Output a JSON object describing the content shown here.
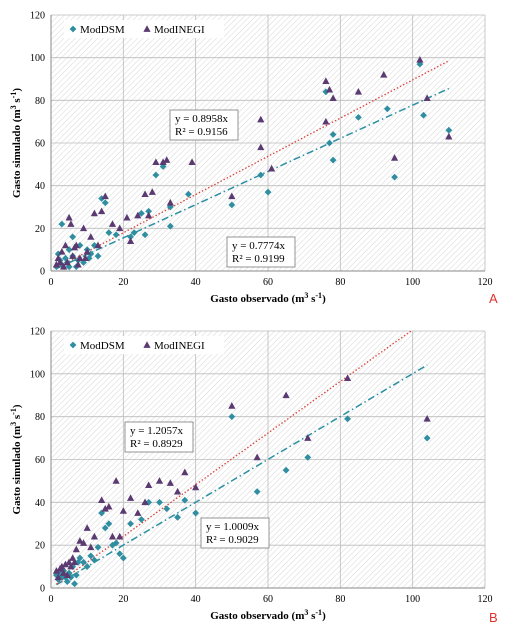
{
  "chart_data": [
    {
      "type": "scatter",
      "panel_label": "A",
      "xlabel_main": "Gasto observado (m",
      "xlabel_sup1": "3",
      "xlabel_mid": " s",
      "xlabel_sup2": "-1",
      "xlabel_end": ")",
      "ylabel_main": "Gasto simulado (m",
      "ylabel_sup1": "3",
      "ylabel_mid": " s",
      "ylabel_sup2": "-1",
      "ylabel_end": ")",
      "xlim": [
        0,
        120
      ],
      "ylim": [
        0,
        120
      ],
      "xticks": [
        "0",
        "20",
        "40",
        "60",
        "80",
        "100",
        "120"
      ],
      "yticks": [
        "0",
        "20",
        "40",
        "60",
        "80",
        "100",
        "120"
      ],
      "grid": true,
      "legend_position": "top-left",
      "series": [
        {
          "name": "ModDSM",
          "marker": "diamond",
          "color": "#2f8ea0",
          "trend_slope": 0.7774,
          "trend_style": "dash-dot",
          "equation": "y = 0.7774x",
          "r2": "R² = 0.9199",
          "points": [
            [
              1.5,
              2
            ],
            [
              2,
              8
            ],
            [
              2.5,
              5
            ],
            [
              3,
              22
            ],
            [
              3,
              3
            ],
            [
              4,
              6
            ],
            [
              4.5,
              4
            ],
            [
              5,
              2
            ],
            [
              5,
              10
            ],
            [
              6,
              16
            ],
            [
              6,
              7
            ],
            [
              7,
              2
            ],
            [
              7.5,
              5
            ],
            [
              8,
              12
            ],
            [
              9,
              4
            ],
            [
              10,
              10
            ],
            [
              10.5,
              6
            ],
            [
              11,
              8
            ],
            [
              12,
              12
            ],
            [
              13,
              7
            ],
            [
              14,
              34
            ],
            [
              15,
              32
            ],
            [
              16,
              18
            ],
            [
              18,
              17
            ],
            [
              22,
              16
            ],
            [
              23,
              18
            ],
            [
              25,
              27
            ],
            [
              26,
              17
            ],
            [
              27,
              28
            ],
            [
              29,
              45
            ],
            [
              31,
              49
            ],
            [
              33,
              30
            ],
            [
              33,
              21
            ],
            [
              38,
              36
            ],
            [
              50,
              31
            ],
            [
              58,
              45
            ],
            [
              60,
              37
            ],
            [
              76,
              84
            ],
            [
              77,
              60
            ],
            [
              78,
              64
            ],
            [
              78,
              52
            ],
            [
              85,
              72
            ],
            [
              93,
              76
            ],
            [
              95,
              44
            ],
            [
              102,
              97
            ],
            [
              103,
              73
            ],
            [
              110,
              66
            ]
          ]
        },
        {
          "name": "ModINEGI",
          "marker": "triangle",
          "color": "#5b3a72",
          "trend_slope": 0.8958,
          "trend_style": "dotted",
          "equation": "y = 0.8958x",
          "r2": "R² = 0.9156",
          "points": [
            [
              1.5,
              3
            ],
            [
              2,
              6
            ],
            [
              2.5,
              4
            ],
            [
              3,
              9
            ],
            [
              3.5,
              2
            ],
            [
              4,
              12
            ],
            [
              4.5,
              4
            ],
            [
              5,
              25
            ],
            [
              5.5,
              22
            ],
            [
              6,
              7
            ],
            [
              6.5,
              11
            ],
            [
              7,
              12
            ],
            [
              7.5,
              3
            ],
            [
              8,
              6
            ],
            [
              9,
              20
            ],
            [
              9.5,
              6
            ],
            [
              10,
              9
            ],
            [
              11,
              16
            ],
            [
              12,
              27
            ],
            [
              13,
              12
            ],
            [
              14,
              28
            ],
            [
              15,
              35
            ],
            [
              17,
              22
            ],
            [
              19,
              20
            ],
            [
              21,
              25
            ],
            [
              22,
              14
            ],
            [
              24,
              26
            ],
            [
              26,
              36
            ],
            [
              27,
              26
            ],
            [
              28,
              37
            ],
            [
              29,
              51
            ],
            [
              31,
              51
            ],
            [
              32,
              52
            ],
            [
              33,
              32
            ],
            [
              39,
              51
            ],
            [
              50,
              35
            ],
            [
              58,
              71
            ],
            [
              58,
              58
            ],
            [
              61,
              48
            ],
            [
              76,
              70
            ],
            [
              76,
              89
            ],
            [
              77,
              85
            ],
            [
              78,
              81
            ],
            [
              85,
              84
            ],
            [
              92,
              92
            ],
            [
              95,
              53
            ],
            [
              102,
              99
            ],
            [
              104,
              81
            ],
            [
              110,
              63
            ]
          ]
        }
      ]
    },
    {
      "type": "scatter",
      "panel_label": "B",
      "xlabel_main": "Gasto observado (m",
      "xlabel_sup1": "3",
      "xlabel_mid": " s",
      "xlabel_sup2": "-1",
      "xlabel_end": ")",
      "ylabel_main": "Gasto simulado (m",
      "ylabel_sup1": "3",
      "ylabel_mid": " s",
      "ylabel_sup2": "-1",
      "ylabel_end": ")",
      "xlim": [
        0,
        120
      ],
      "ylim": [
        0,
        120
      ],
      "xticks": [
        "0",
        "20",
        "40",
        "60",
        "80",
        "100",
        "120"
      ],
      "yticks": [
        "0",
        "20",
        "40",
        "60",
        "80",
        "100",
        "120"
      ],
      "grid": true,
      "legend_position": "top-left",
      "series": [
        {
          "name": "ModDSM",
          "marker": "diamond",
          "color": "#2f8ea0",
          "trend_slope": 1.0009,
          "trend_style": "dash-dot",
          "equation": "y = 1.0009x",
          "r2": "R² = 0.9029",
          "points": [
            [
              1.5,
              6
            ],
            [
              2,
              4
            ],
            [
              2.5,
              7
            ],
            [
              3,
              5
            ],
            [
              3.5,
              8
            ],
            [
              4,
              5
            ],
            [
              4.5,
              3
            ],
            [
              5,
              7
            ],
            [
              5.5,
              5
            ],
            [
              6,
              10
            ],
            [
              6.5,
              2
            ],
            [
              7,
              6
            ],
            [
              7.5,
              12
            ],
            [
              8,
              14
            ],
            [
              9,
              12
            ],
            [
              10,
              10
            ],
            [
              11,
              15
            ],
            [
              12,
              13
            ],
            [
              13,
              19
            ],
            [
              14,
              35
            ],
            [
              15,
              28
            ],
            [
              16,
              30
            ],
            [
              17,
              20
            ],
            [
              18,
              21
            ],
            [
              19,
              16
            ],
            [
              20,
              14
            ],
            [
              22,
              30
            ],
            [
              25,
              32
            ],
            [
              27,
              40
            ],
            [
              30,
              40
            ],
            [
              32,
              37
            ],
            [
              35,
              33
            ],
            [
              37,
              41
            ],
            [
              40,
              35
            ],
            [
              50,
              80
            ],
            [
              57,
              45
            ],
            [
              65,
              55
            ],
            [
              71,
              61
            ],
            [
              82,
              79
            ],
            [
              104,
              70
            ]
          ]
        },
        {
          "name": "ModINEGI",
          "marker": "triangle",
          "color": "#5b3a72",
          "trend_slope": 1.2057,
          "trend_style": "dotted",
          "equation": "y = 1.2057x",
          "r2": "R² = 0.8929",
          "points": [
            [
              1.5,
              8
            ],
            [
              2,
              5
            ],
            [
              2.5,
              9
            ],
            [
              3,
              10
            ],
            [
              3.5,
              7
            ],
            [
              4,
              11
            ],
            [
              4.5,
              6
            ],
            [
              5,
              12
            ],
            [
              5.5,
              10
            ],
            [
              6,
              14
            ],
            [
              6.5,
              12
            ],
            [
              7,
              18
            ],
            [
              8,
              22
            ],
            [
              9,
              21
            ],
            [
              10,
              28
            ],
            [
              11,
              19
            ],
            [
              12,
              24
            ],
            [
              14,
              41
            ],
            [
              15,
              37
            ],
            [
              16,
              38
            ],
            [
              17,
              24
            ],
            [
              18,
              50
            ],
            [
              19,
              24
            ],
            [
              20,
              36
            ],
            [
              22,
              42
            ],
            [
              24,
              35
            ],
            [
              26,
              40
            ],
            [
              27,
              48
            ],
            [
              30,
              50
            ],
            [
              33,
              49
            ],
            [
              35,
              45
            ],
            [
              37,
              54
            ],
            [
              40,
              47
            ],
            [
              50,
              85
            ],
            [
              57,
              61
            ],
            [
              65,
              90
            ],
            [
              71,
              70
            ],
            [
              82,
              98
            ],
            [
              104,
              79
            ]
          ]
        }
      ]
    }
  ]
}
